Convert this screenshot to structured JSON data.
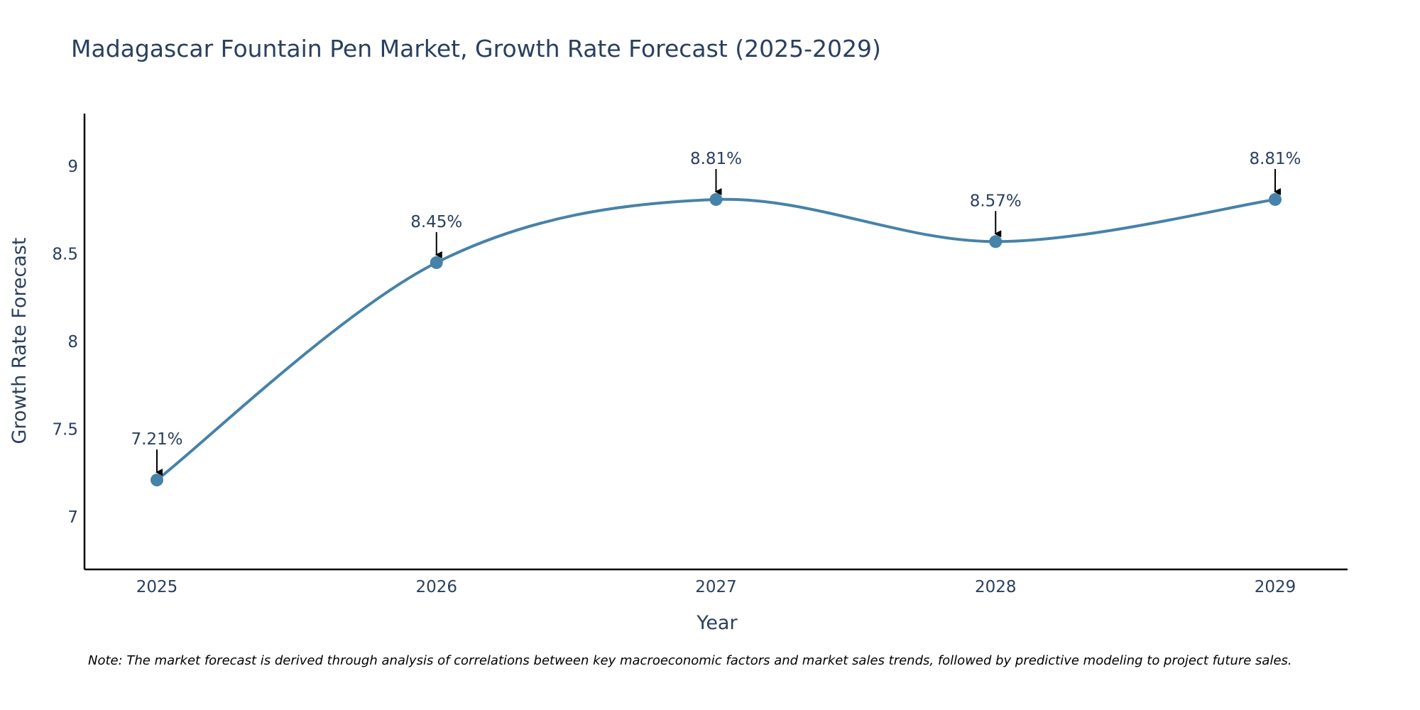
{
  "chart_data": {
    "type": "line",
    "title": "Madagascar Fountain Pen Market, Growth Rate Forecast (2025-2029)",
    "xlabel": "Year",
    "ylabel": "Growth Rate Forecast",
    "categories": [
      "2025",
      "2026",
      "2027",
      "2028",
      "2029"
    ],
    "values": [
      7.21,
      8.45,
      8.81,
      8.57,
      8.81
    ],
    "data_labels": [
      "7.21%",
      "8.45%",
      "8.81%",
      "8.57%",
      "8.81%"
    ],
    "ylim": [
      6.7,
      9.3
    ],
    "yticks": [
      7,
      7.5,
      8,
      8.5,
      9
    ],
    "ytick_labels": [
      "7",
      "7.5",
      "8",
      "8.5",
      "9"
    ],
    "line_shape": "spline",
    "grid": false,
    "colors": {
      "line": "#4682a9",
      "marker": "#4682a9",
      "axis": "#000000",
      "arrow": "#000000",
      "text": "#2a3f5f"
    }
  },
  "note": "Note: The market forecast is derived through analysis of correlations between key macroeconomic factors and market sales trends, followed by predictive modeling to project future sales."
}
